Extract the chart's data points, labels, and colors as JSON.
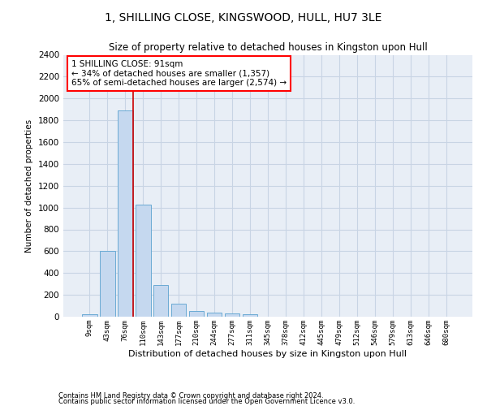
{
  "title": "1, SHILLING CLOSE, KINGSWOOD, HULL, HU7 3LE",
  "subtitle": "Size of property relative to detached houses in Kingston upon Hull",
  "xlabel": "Distribution of detached houses by size in Kingston upon Hull",
  "ylabel": "Number of detached properties",
  "footnote1": "Contains HM Land Registry data © Crown copyright and database right 2024.",
  "footnote2": "Contains public sector information licensed under the Open Government Licence v3.0.",
  "annotation_line1": "1 SHILLING CLOSE: 91sqm",
  "annotation_line2": "← 34% of detached houses are smaller (1,357)",
  "annotation_line3": "65% of semi-detached houses are larger (2,574) →",
  "bar_color": "#c5d8ef",
  "bar_edge_color": "#6aaad4",
  "grid_color": "#c8d4e4",
  "background_color": "#e8eef6",
  "red_line_color": "#cc0000",
  "categories": [
    "9sqm",
    "43sqm",
    "76sqm",
    "110sqm",
    "143sqm",
    "177sqm",
    "210sqm",
    "244sqm",
    "277sqm",
    "311sqm",
    "345sqm",
    "378sqm",
    "412sqm",
    "445sqm",
    "479sqm",
    "512sqm",
    "546sqm",
    "579sqm",
    "613sqm",
    "646sqm",
    "680sqm"
  ],
  "values": [
    20,
    600,
    1890,
    1030,
    290,
    120,
    50,
    40,
    28,
    20,
    0,
    0,
    0,
    0,
    0,
    0,
    0,
    0,
    0,
    0,
    0
  ],
  "property_bin_index": 2,
  "ylim": [
    0,
    2400
  ],
  "yticks": [
    0,
    200,
    400,
    600,
    800,
    1000,
    1200,
    1400,
    1600,
    1800,
    2000,
    2200,
    2400
  ]
}
